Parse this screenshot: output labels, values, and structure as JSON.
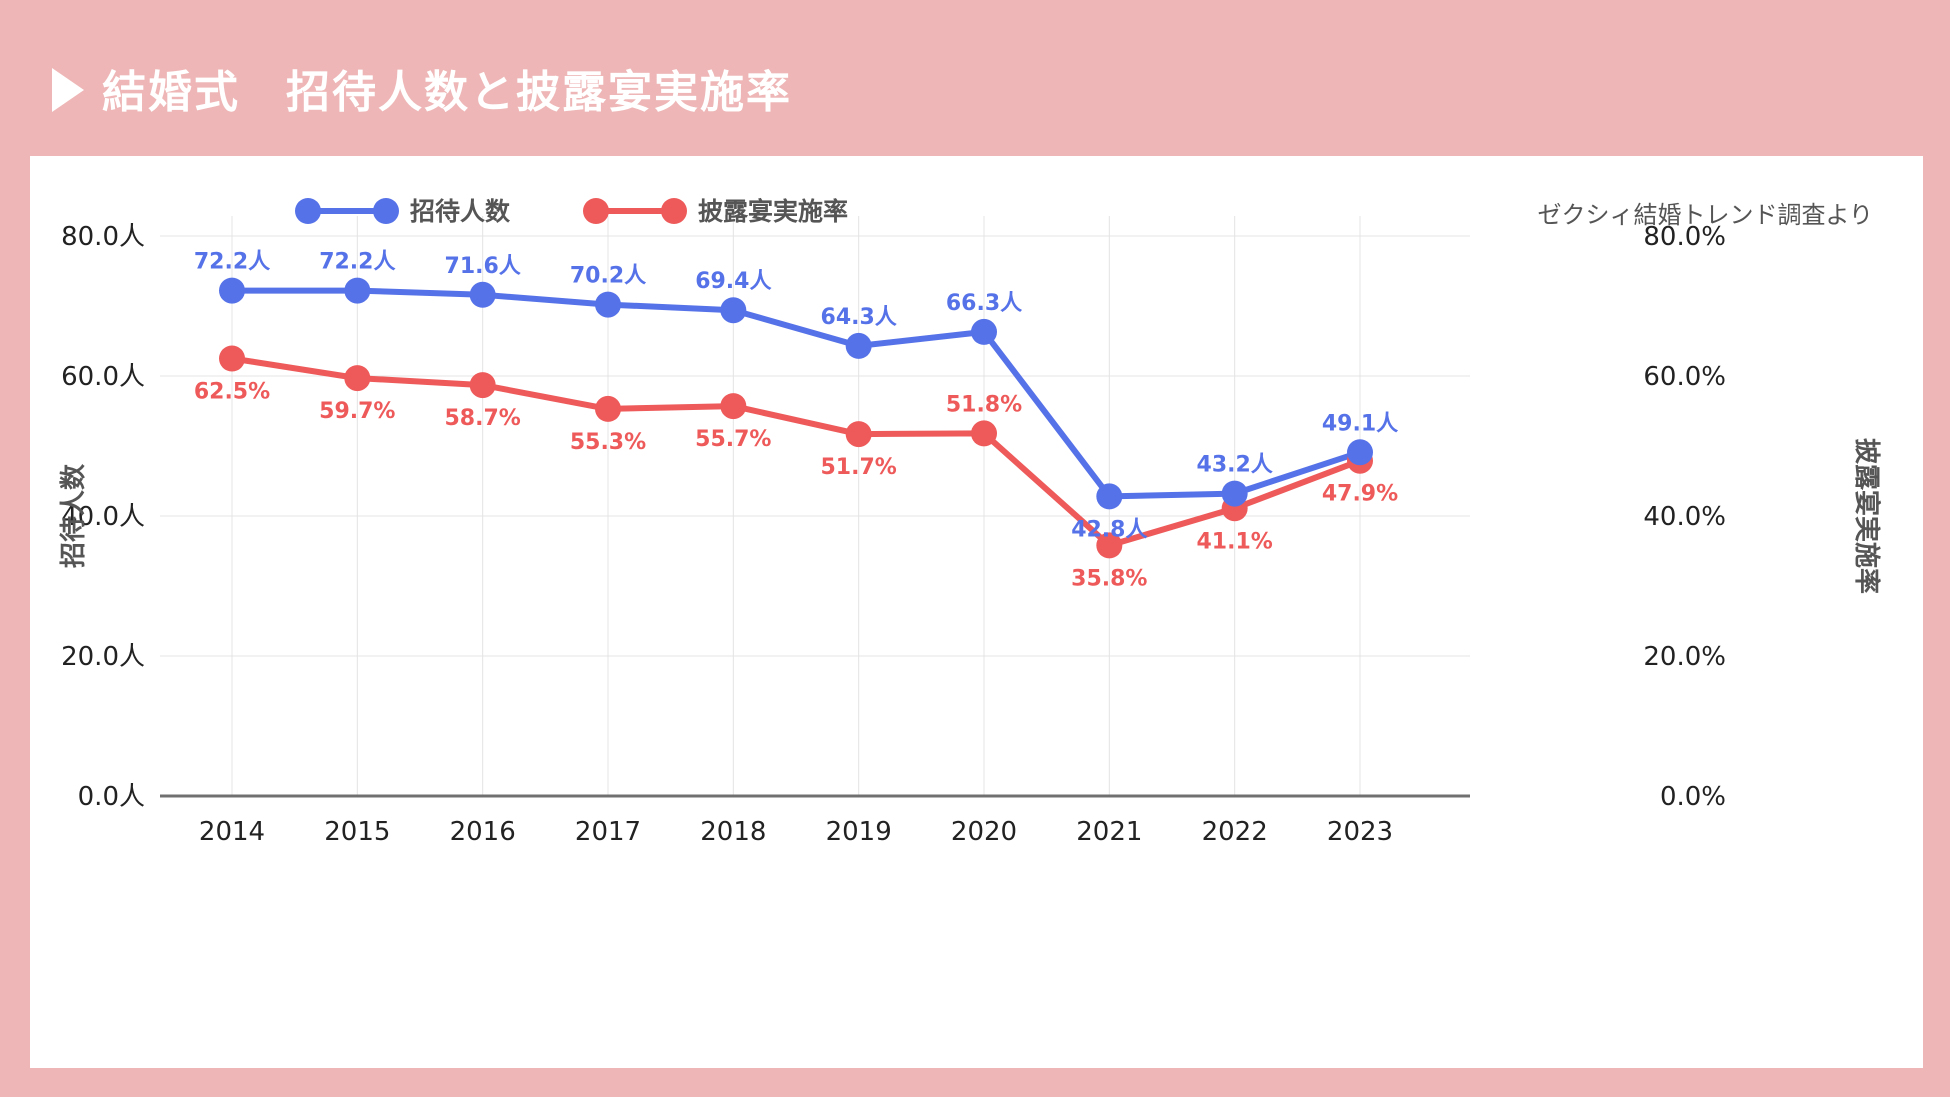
{
  "title": "結婚式　招待人数と披露宴実施率",
  "colors": {
    "background": "#eeb6b6",
    "series1": "#5672e8",
    "series2": "#ee5a5a",
    "grid": "#e4e4e4",
    "axis": "#707070",
    "text": "#222222",
    "muted": "#555555"
  },
  "chart_data": {
    "type": "line",
    "source": "ゼクシィ結婚トレンド調査より",
    "categories": [
      "2014",
      "2015",
      "2016",
      "2017",
      "2018",
      "2019",
      "2020",
      "2021",
      "2022",
      "2023"
    ],
    "series": [
      {
        "name": "招待人数",
        "axis": "left",
        "values": [
          72.2,
          72.2,
          71.6,
          70.2,
          69.4,
          64.3,
          66.3,
          42.8,
          43.2,
          49.1
        ],
        "labels": [
          "72.2人",
          "72.2人",
          "71.6人",
          "70.2人",
          "69.4人",
          "64.3人",
          "66.3人",
          "42.8人",
          "43.2人",
          "49.1人"
        ]
      },
      {
        "name": "披露宴実施率",
        "axis": "right",
        "values": [
          62.5,
          59.7,
          58.7,
          55.3,
          55.7,
          51.7,
          51.8,
          35.8,
          41.1,
          47.9
        ],
        "labels": [
          "62.5%",
          "59.7%",
          "58.7%",
          "55.3%",
          "55.7%",
          "51.7%",
          "51.8%",
          "35.8%",
          "41.1%",
          "47.9%"
        ]
      }
    ],
    "y_left": {
      "label": "招待人数",
      "ylim": [
        0,
        80
      ],
      "ticks": [
        "0.0人",
        "20.0人",
        "40.0人",
        "60.0人",
        "80.0人"
      ]
    },
    "y_right": {
      "label": "披露宴実施率",
      "ylim": [
        0,
        80
      ],
      "ticks": [
        "0.0%",
        "20.0%",
        "40.0%",
        "60.0%",
        "80.0%"
      ]
    },
    "legend": "top-left",
    "grid": true
  }
}
